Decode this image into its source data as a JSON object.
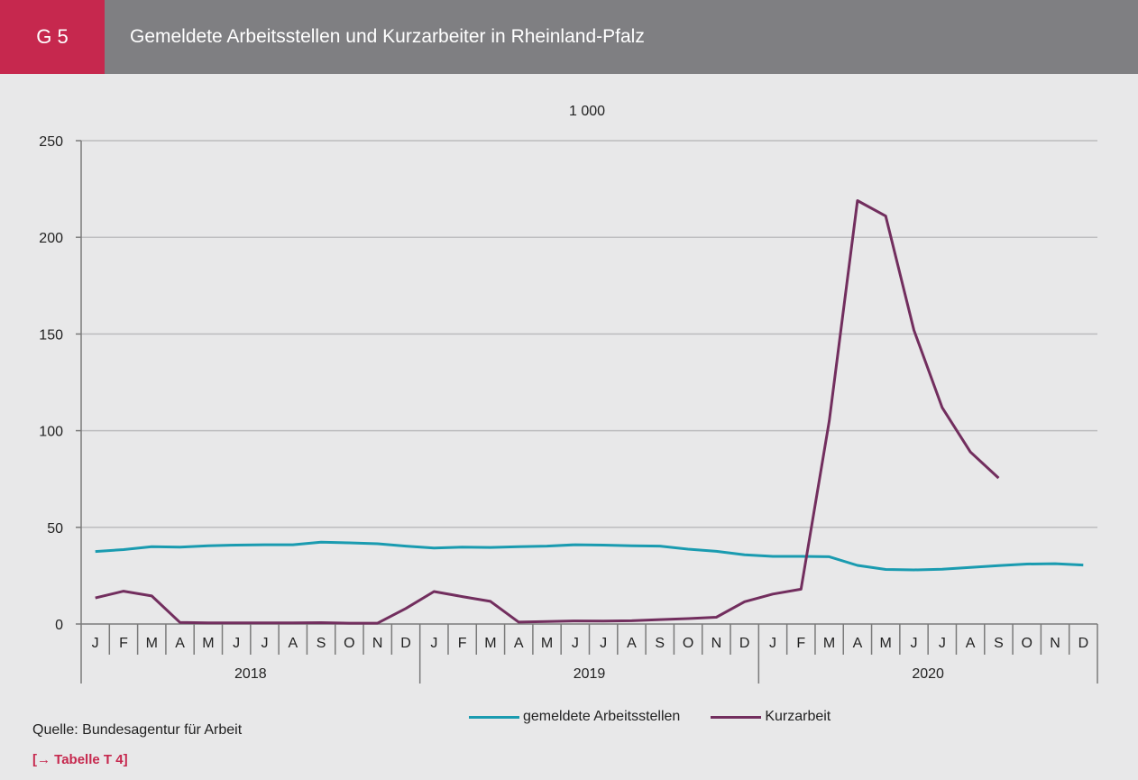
{
  "header": {
    "code": "G 5",
    "title": "Gemeldete Arbeitsstellen und Kurzarbeiter in Rheinland-Pfalz"
  },
  "chart_data": {
    "type": "line",
    "unit_label": "1 000",
    "ylim": [
      0,
      250
    ],
    "y_ticks": [
      0,
      50,
      100,
      150,
      200,
      250
    ],
    "grid": true,
    "month_labels": [
      "J",
      "F",
      "M",
      "A",
      "M",
      "J",
      "J",
      "A",
      "S",
      "O",
      "N",
      "D",
      "J",
      "F",
      "M",
      "A",
      "M",
      "J",
      "J",
      "A",
      "S",
      "O",
      "N",
      "D",
      "J",
      "F",
      "M",
      "A",
      "M",
      "J",
      "J",
      "A",
      "S",
      "O",
      "N",
      "D"
    ],
    "years": [
      "2018",
      "2019",
      "2020"
    ],
    "series": [
      {
        "name": "gemeldete Arbeitsstellen",
        "color": "#1a9bb0",
        "values": [
          37.5,
          38.5,
          40,
          39.8,
          40.5,
          40.8,
          41,
          41,
          42.3,
          42,
          41.5,
          40.3,
          39.3,
          39.8,
          39.6,
          40,
          40.3,
          41,
          40.8,
          40.5,
          40.3,
          38.7,
          37.6,
          35.8,
          35,
          35,
          34.8,
          30.3,
          28.2,
          28,
          28.3,
          29.3,
          30.2,
          31,
          31.2,
          30.5
        ]
      },
      {
        "name": "Kurzarbeit",
        "color": "#722e5e",
        "values": [
          13.5,
          17,
          14.5,
          0.8,
          0.6,
          0.6,
          0.6,
          0.6,
          0.7,
          0.4,
          0.4,
          8,
          16.8,
          14.2,
          11.7,
          1,
          1.3,
          1.6,
          1.5,
          1.7,
          2.3,
          2.8,
          3.5,
          11.5,
          15.5,
          18,
          105,
          219,
          211,
          152,
          112,
          89,
          75.5,
          null,
          null,
          null
        ]
      }
    ],
    "legend_position": "bottom"
  },
  "footer": {
    "source": "Quelle: Bundesagentur für Arbeit",
    "link": "[→ Tabelle T 4]"
  }
}
